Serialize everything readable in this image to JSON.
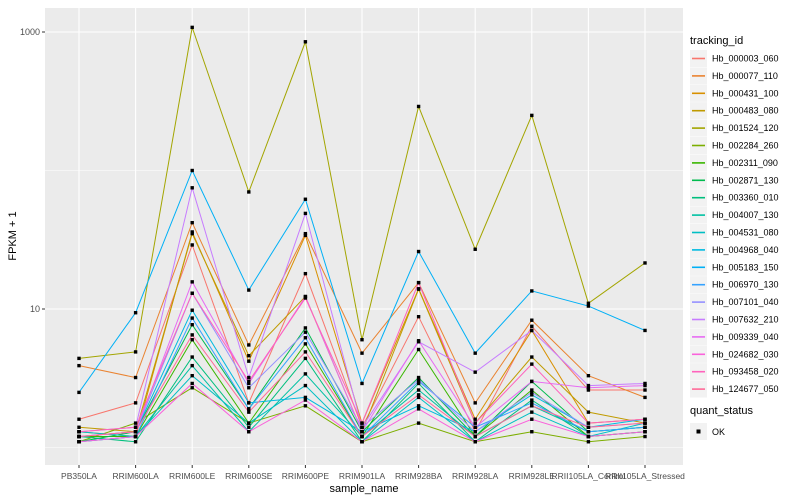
{
  "chart_data": {
    "type": "line",
    "xlabel": "sample_name",
    "ylabel": "FPKM + 1",
    "y_scale": "log10",
    "y_ticks": [
      {
        "label": "1000",
        "value": 1000
      },
      {
        "label": "10",
        "value": 10
      }
    ],
    "y_minor_gridlines": [
      1,
      100
    ],
    "ylim": [
      0.75,
      1300
    ],
    "grid": true,
    "panel_bg": "#EBEBEB",
    "grid_color": "#FFFFFF",
    "tick_label_color": "#4D4D4D",
    "marker_color": "#000000",
    "marker_shape": "square",
    "legend_position": "right",
    "legend_title": "tracking_id",
    "legend2": {
      "title": "quant_status",
      "items": [
        {
          "label": "OK",
          "marker": "black-square"
        }
      ]
    },
    "categories": [
      "PB350LA",
      "RRIM600LA",
      "RRIM600LE",
      "RRIM600SE",
      "RRIM600PE",
      "RRIM901LA",
      "RRIM928BA",
      "RRIM928LA",
      "RRIM928LE",
      "RRII105LA_Control",
      "RRII105LA_Stressed"
    ],
    "series": [
      {
        "name": "Hb_000003_060",
        "color": "#F8766D",
        "values": [
          1.6,
          2.1,
          29,
          2.1,
          18,
          1.4,
          8.8,
          1.3,
          7.5,
          2.6,
          2.6
        ]
      },
      {
        "name": "Hb_000077_110",
        "color": "#EA8331",
        "values": [
          3.9,
          3.2,
          42,
          5.5,
          35,
          4.8,
          15.5,
          2.1,
          8.3,
          3.3,
          2.3
        ]
      },
      {
        "name": "Hb_000431_100",
        "color": "#D89000",
        "values": [
          1.3,
          1.2,
          36,
          4.2,
          34,
          1.5,
          14,
          1.6,
          7.0,
          1.5,
          1.6
        ]
      },
      {
        "name": "Hb_000483_080",
        "color": "#C09B00",
        "values": [
          1.4,
          1.3,
          35,
          4.6,
          12.3,
          1.3,
          13.9,
          1.5,
          4.5,
          1.8,
          1.5
        ]
      },
      {
        "name": "Hb_001524_120",
        "color": "#A3A500",
        "values": [
          4.4,
          4.9,
          1080,
          70,
          850,
          6.0,
          290,
          27,
          250,
          11,
          21.5
        ]
      },
      {
        "name": "Hb_002284_260",
        "color": "#7CAE00",
        "values": [
          1.1,
          1.5,
          2.7,
          1.5,
          2.0,
          1.1,
          1.5,
          1.1,
          1.3,
          1.1,
          1.2
        ]
      },
      {
        "name": "Hb_002311_090",
        "color": "#39B600",
        "values": [
          1.2,
          1.2,
          6.0,
          1.5,
          5.6,
          1.2,
          5.1,
          1.2,
          2.6,
          1.2,
          1.3
        ]
      },
      {
        "name": "Hb_002871_130",
        "color": "#00BB4E",
        "values": [
          1.1,
          1.3,
          7.7,
          1.9,
          7.3,
          1.3,
          3.2,
          1.2,
          3.0,
          1.3,
          1.4
        ]
      },
      {
        "name": "Hb_003360_010",
        "color": "#00BF7D",
        "values": [
          1.2,
          1.1,
          4.5,
          1.4,
          4.4,
          1.1,
          2.9,
          1.1,
          2.2,
          1.2,
          1.3
        ]
      },
      {
        "name": "Hb_004007_130",
        "color": "#00C1A3",
        "values": [
          1.1,
          1.2,
          3.9,
          1.3,
          3.4,
          1.2,
          2.6,
          1.2,
          2.0,
          1.3,
          1.4
        ]
      },
      {
        "name": "Hb_004531_080",
        "color": "#00BFC4",
        "values": [
          1.3,
          1.2,
          3.3,
          1.5,
          2.8,
          1.1,
          2.3,
          1.1,
          1.8,
          1.2,
          1.5
        ]
      },
      {
        "name": "Hb_004968_040",
        "color": "#00BAE0",
        "values": [
          1.2,
          1.3,
          9.8,
          2.1,
          2.3,
          1.3,
          2.0,
          1.3,
          2.4,
          1.4,
          1.6
        ]
      },
      {
        "name": "Hb_005183_150",
        "color": "#00B0F6",
        "values": [
          2.5,
          9.4,
          100,
          13.7,
          62,
          2.9,
          26,
          4.8,
          13.5,
          10.5,
          7.0
        ]
      },
      {
        "name": "Hb_006970_130",
        "color": "#35A2FF",
        "values": [
          1.1,
          1.2,
          8.6,
          1.9,
          6.2,
          1.2,
          3.0,
          1.4,
          2.1,
          1.3,
          1.4
        ]
      },
      {
        "name": "Hb_007101_040",
        "color": "#9590FF",
        "values": [
          1.2,
          1.3,
          13,
          2.7,
          6.8,
          1.4,
          3.1,
          1.3,
          2.5,
          1.4,
          1.5
        ]
      },
      {
        "name": "Hb_007632_210",
        "color": "#C77CFF",
        "values": [
          1.3,
          1.4,
          75,
          3.2,
          49,
          1.4,
          5.8,
          3.5,
          7.0,
          2.8,
          2.9
        ]
      },
      {
        "name": "Hb_009339_040",
        "color": "#E76BF3",
        "values": [
          1.2,
          1.3,
          15.7,
          2.9,
          12.3,
          1.3,
          5.9,
          1.4,
          3.0,
          2.7,
          2.8
        ]
      },
      {
        "name": "Hb_024682_030",
        "color": "#FA62DB",
        "values": [
          1.1,
          1.2,
          2.9,
          1.3,
          2.2,
          1.1,
          1.9,
          1.1,
          1.6,
          1.2,
          1.3
        ]
      },
      {
        "name": "Hb_093458_020",
        "color": "#FF62BC",
        "values": [
          1.3,
          1.4,
          13,
          3.0,
          12,
          1.5,
          15.5,
          1.5,
          4.0,
          1.5,
          1.6
        ]
      },
      {
        "name": "Hb_124677_050",
        "color": "#FF6A98",
        "values": [
          1.2,
          1.3,
          6.5,
          1.8,
          4.9,
          1.2,
          2.4,
          1.2,
          2.0,
          1.4,
          1.5
        ]
      }
    ]
  }
}
